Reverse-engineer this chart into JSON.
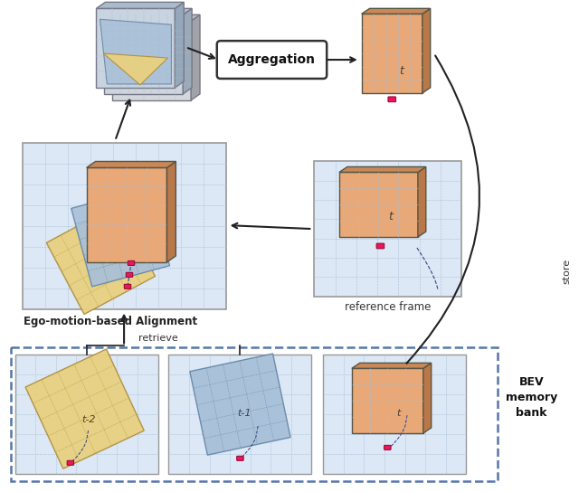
{
  "bg_color": "#ffffff",
  "grid_bg": "#dce8f5",
  "grid_color": "#a8c0d8",
  "panel_border": "#999999",
  "salmon_color": "#e8a878",
  "salmon_side": "#b87848",
  "salmon_top": "#c88858",
  "yellow_color": "#e8d080",
  "yellow_border": "#c0a040",
  "blue_color": "#a8c0d8",
  "blue_border": "#7090b0",
  "dark_border": "#444444",
  "car_color": "#e8185a",
  "car_border": "#900030",
  "arrow_color": "#222222",
  "dashed_color": "#334488",
  "text_color": "#222222",
  "title": "Ego-motion-based Alignment",
  "ref_label": "reference frame",
  "bank_label": "BEV\nmemory\nbank",
  "retrieve_label": "retrieve",
  "store_label": "store",
  "aggregation_label": "Aggregation",
  "t_label": "t",
  "t1_label": "t-1",
  "t2_label": "t-2"
}
